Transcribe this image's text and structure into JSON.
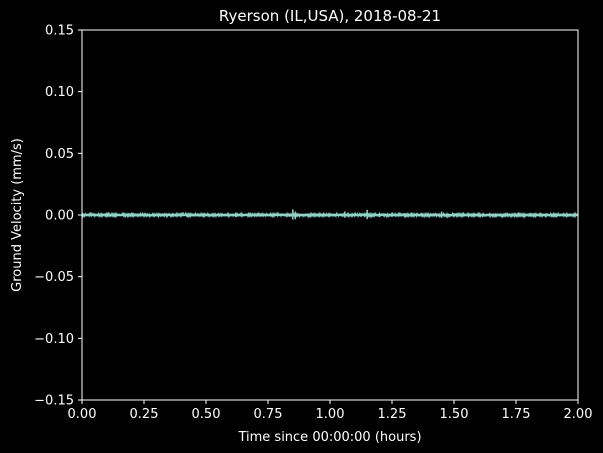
{
  "chart_data": {
    "type": "line",
    "title": "Ryerson (IL,USA), 2018-08-21",
    "xlabel": "Time since 00:00:00 (hours)",
    "ylabel": "Ground Velocity (mm/s)",
    "xlim": [
      0.0,
      2.0
    ],
    "ylim": [
      -0.15,
      0.15
    ],
    "xticks": [
      "0.00",
      "0.25",
      "0.50",
      "0.75",
      "1.00",
      "1.25",
      "1.50",
      "1.75",
      "2.00"
    ],
    "yticks": [
      "0.15",
      "0.10",
      "0.05",
      "0.00",
      "−0.05",
      "−0.10",
      "−0.15"
    ],
    "grid": false,
    "background": "#000000",
    "foreground": "#ffffff",
    "series": [
      {
        "color": "#8dd3c7",
        "baseline_amplitude": 0.0012,
        "x": [
          0.0,
          0.1,
          0.2,
          0.3,
          0.4,
          0.42,
          0.5,
          0.6,
          0.62,
          0.7,
          0.75,
          0.8,
          0.85,
          0.86,
          0.9,
          1.0,
          1.06,
          1.1,
          1.15,
          1.2,
          1.25,
          1.3,
          1.35,
          1.4,
          1.45,
          1.5,
          1.6,
          1.7,
          1.75,
          1.8,
          1.9,
          2.0
        ],
        "y": [
          0.0,
          0.0005,
          -0.0005,
          0.0006,
          -0.0006,
          0.0012,
          0.0007,
          -0.0008,
          0.002,
          0.0008,
          -0.001,
          0.0009,
          0.0045,
          -0.0035,
          0.001,
          -0.001,
          0.0028,
          -0.0012,
          0.0042,
          -0.0016,
          0.0018,
          -0.002,
          0.0015,
          -0.0012,
          0.0028,
          -0.0018,
          0.0012,
          -0.001,
          0.001,
          -0.0012,
          0.0008,
          0.0
        ]
      }
    ]
  }
}
